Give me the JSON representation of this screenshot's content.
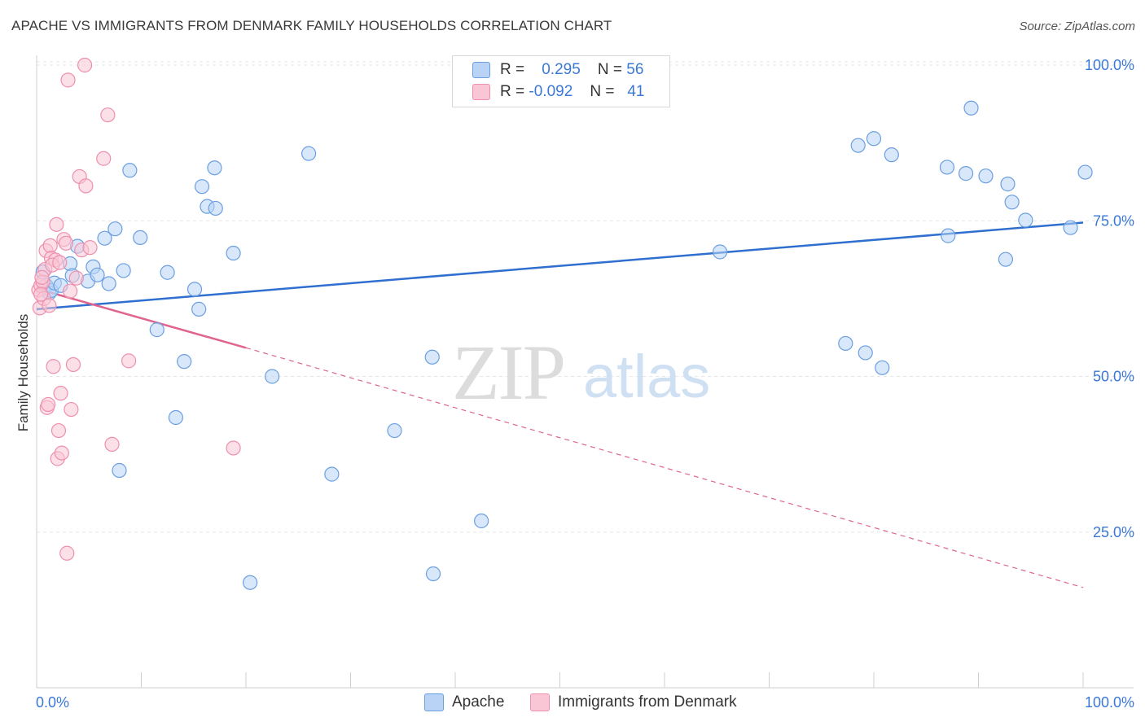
{
  "title": "APACHE VS IMMIGRANTS FROM DENMARK FAMILY HOUSEHOLDS CORRELATION CHART",
  "source": "Source: ZipAtlas.com",
  "watermark": {
    "zip": "ZIP",
    "atlas": "atlas"
  },
  "legend": {
    "r_label": "R =",
    "n_label": "N =",
    "apache": {
      "r": "0.295",
      "n": "56"
    },
    "denmark": {
      "r": "-0.092",
      "n": "41"
    }
  },
  "colors": {
    "apache_fill": "#b8d3f5",
    "apache_stroke": "#6b9fe0",
    "apache_line": "#2f6fcf",
    "denmark_fill": "#f9c6d6",
    "denmark_stroke": "#ee8fae",
    "denmark_line": "#e0648f",
    "axis_label": "#3a78d8",
    "grid": "#e6e6e6"
  },
  "chart_data": {
    "type": "scatter",
    "xlabel": "",
    "ylabel": "Family Households",
    "xlim": [
      0,
      100
    ],
    "ylim": [
      0,
      100
    ],
    "x_tick_labels": [
      "0.0%",
      "100.0%"
    ],
    "y_ticks": [
      25,
      50,
      75,
      100
    ],
    "y_tick_labels": [
      "25.0%",
      "50.0%",
      "75.0%",
      "100.0%"
    ],
    "grid": true,
    "legend_position": "top-center",
    "series": [
      {
        "name": "Apache",
        "r": 0.295,
        "n": 56,
        "trend": {
          "x": [
            0,
            100
          ],
          "y": [
            60.8,
            74.7
          ],
          "style": "solid"
        },
        "points": [
          [
            0.6,
            66.8
          ],
          [
            0.9,
            64.6
          ],
          [
            1.2,
            63.4
          ],
          [
            1.4,
            63.8
          ],
          [
            1.7,
            65.0
          ],
          [
            2.3,
            64.6
          ],
          [
            3.2,
            68.1
          ],
          [
            3.4,
            66.2
          ],
          [
            3.9,
            70.9
          ],
          [
            4.9,
            65.3
          ],
          [
            5.4,
            67.6
          ],
          [
            5.8,
            66.3
          ],
          [
            6.5,
            72.2
          ],
          [
            6.9,
            64.9
          ],
          [
            7.5,
            73.7
          ],
          [
            7.9,
            34.9
          ],
          [
            8.3,
            67.0
          ],
          [
            8.9,
            83.1
          ],
          [
            9.9,
            72.3
          ],
          [
            11.5,
            57.5
          ],
          [
            12.5,
            66.7
          ],
          [
            13.3,
            43.4
          ],
          [
            14.1,
            52.4
          ],
          [
            15.1,
            64.0
          ],
          [
            15.5,
            60.8
          ],
          [
            15.8,
            80.5
          ],
          [
            16.3,
            77.3
          ],
          [
            17.0,
            83.5
          ],
          [
            17.1,
            77.0
          ],
          [
            18.8,
            69.8
          ],
          [
            20.4,
            16.9
          ],
          [
            22.5,
            50.0
          ],
          [
            26.0,
            85.8
          ],
          [
            28.2,
            34.3
          ],
          [
            34.2,
            41.3
          ],
          [
            37.8,
            53.1
          ],
          [
            37.9,
            18.3
          ],
          [
            42.5,
            26.8
          ],
          [
            65.3,
            70.0
          ],
          [
            77.3,
            55.3
          ],
          [
            78.5,
            87.1
          ],
          [
            79.2,
            53.8
          ],
          [
            80.0,
            88.2
          ],
          [
            80.8,
            51.4
          ],
          [
            81.7,
            85.6
          ],
          [
            87.0,
            83.6
          ],
          [
            87.1,
            72.6
          ],
          [
            88.8,
            82.6
          ],
          [
            89.3,
            93.1
          ],
          [
            90.7,
            82.2
          ],
          [
            92.6,
            68.8
          ],
          [
            92.8,
            80.9
          ],
          [
            93.2,
            78.0
          ],
          [
            94.5,
            75.1
          ],
          [
            98.8,
            73.9
          ],
          [
            100.2,
            82.8
          ]
        ]
      },
      {
        "name": "Immigrants from Denmark",
        "r": -0.092,
        "n": 41,
        "trend": {
          "x": [
            0,
            20,
            100
          ],
          "y": [
            64.1,
            54.6,
            16.1
          ],
          "style": "solid-then-dashed",
          "solid_until": 20
        },
        "points": [
          [
            0.2,
            63.9
          ],
          [
            0.3,
            61.0
          ],
          [
            0.4,
            64.6
          ],
          [
            0.6,
            65.2
          ],
          [
            0.7,
            62.5
          ],
          [
            0.8,
            67.2
          ],
          [
            0.9,
            70.2
          ],
          [
            1.0,
            45.0
          ],
          [
            1.1,
            45.5
          ],
          [
            1.2,
            61.4
          ],
          [
            1.3,
            71.0
          ],
          [
            1.4,
            69.0
          ],
          [
            1.6,
            51.6
          ],
          [
            1.8,
            68.7
          ],
          [
            1.9,
            74.4
          ],
          [
            2.0,
            36.8
          ],
          [
            2.1,
            41.3
          ],
          [
            2.3,
            47.3
          ],
          [
            2.4,
            37.7
          ],
          [
            2.6,
            72.0
          ],
          [
            2.8,
            71.4
          ],
          [
            2.9,
            21.6
          ],
          [
            3.0,
            97.6
          ],
          [
            3.2,
            63.7
          ],
          [
            3.3,
            44.7
          ],
          [
            3.5,
            51.9
          ],
          [
            3.8,
            65.8
          ],
          [
            4.1,
            82.1
          ],
          [
            4.3,
            70.3
          ],
          [
            4.6,
            100.0
          ],
          [
            4.7,
            80.6
          ],
          [
            5.1,
            70.7
          ],
          [
            6.4,
            85.0
          ],
          [
            6.8,
            92.0
          ],
          [
            7.2,
            39.1
          ],
          [
            8.8,
            52.5
          ],
          [
            18.8,
            38.5
          ],
          [
            0.5,
            65.9
          ],
          [
            1.5,
            67.9
          ],
          [
            0.4,
            63.2
          ],
          [
            2.2,
            68.3
          ]
        ]
      }
    ]
  }
}
